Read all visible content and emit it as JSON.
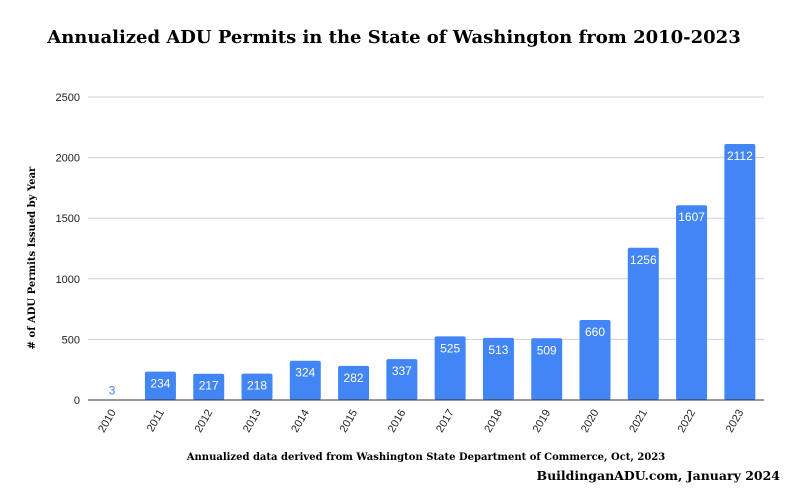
{
  "chart_data": {
    "type": "bar",
    "title": "Annualized ADU Permits in the State of Washington from 2010-2023",
    "ylabel": "# of ADU Permits Issued by Year",
    "xlabel": "Annualized data derived from Washington State Department of Commerce, Oct, 2023",
    "credit": "BuildinganADU.com, January 2024",
    "categories": [
      "2010",
      "2011",
      "2012",
      "2013",
      "2014",
      "2015",
      "2016",
      "2017",
      "2018",
      "2019",
      "2020",
      "2021",
      "2022",
      "2023"
    ],
    "values": [
      3,
      234,
      217,
      218,
      324,
      282,
      337,
      525,
      513,
      509,
      660,
      1256,
      1607,
      2112
    ],
    "ylim": [
      0,
      2500
    ],
    "yticks": [
      0,
      500,
      1000,
      1500,
      2000,
      2500
    ],
    "grid": true,
    "legend": "none",
    "bar_color": "#4285f4",
    "label_color_inside": "#ffffff",
    "label_color_outside": "#4285f4"
  }
}
